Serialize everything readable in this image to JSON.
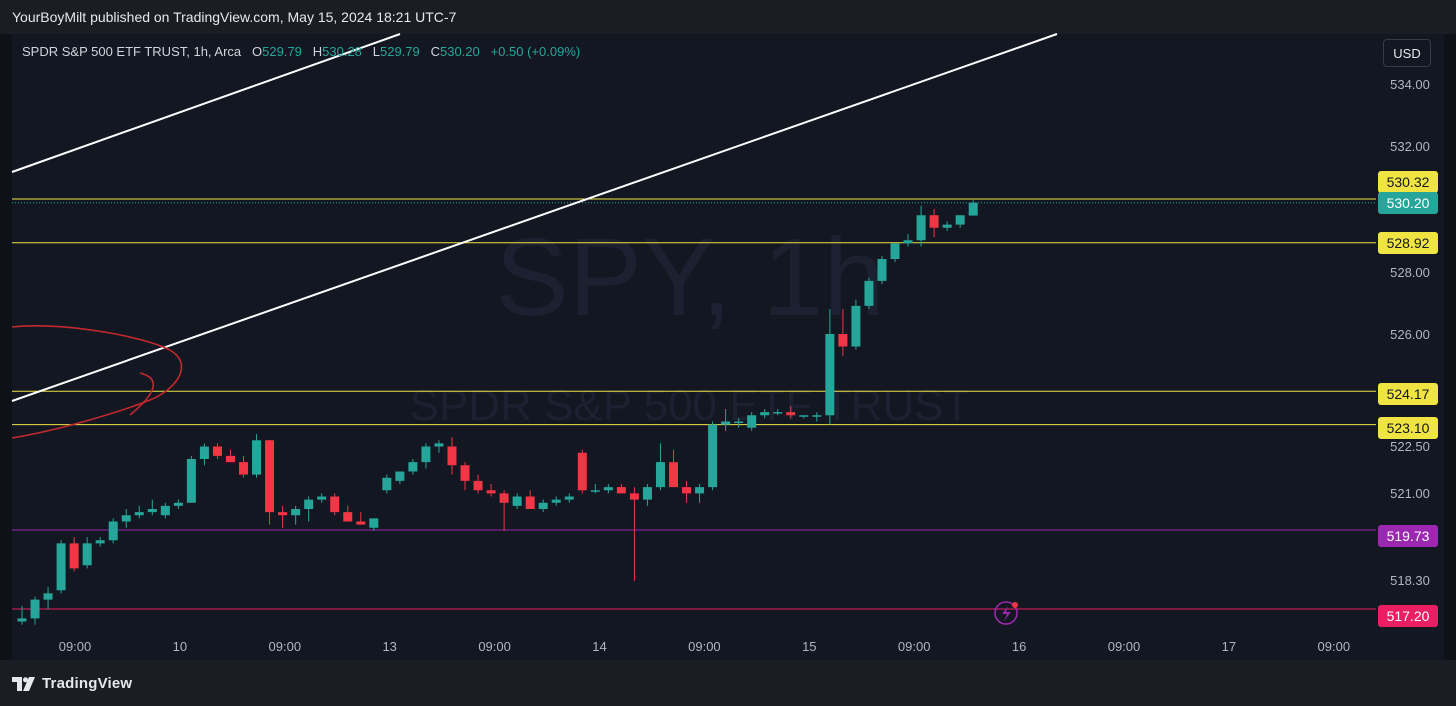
{
  "header": {
    "publisher_line": "YourBoyMilt published on TradingView.com, May 15, 2024 18:21 UTC-7"
  },
  "legend": {
    "symbol": "SPDR S&P 500 ETF TRUST, 1h, Arca",
    "open_label": "O",
    "open": "529.79",
    "high_label": "H",
    "high": "530.28",
    "low_label": "L",
    "low": "529.79",
    "close_label": "C",
    "close": "530.20",
    "change": "+0.50 (+0.09%)"
  },
  "watermark": {
    "symbol": "SPY, 1h",
    "name": "SPDR S&P 500 ETF TRUST"
  },
  "currency": "USD",
  "footer": {
    "brand": "TradingView"
  },
  "colors": {
    "up": "#26a69a",
    "down": "#f23645",
    "hline": "#f0e442",
    "purple": "#9c27b0",
    "pink": "#e91e63"
  },
  "chart_data": {
    "type": "candlestick",
    "y_ticks": [
      "534.00",
      "532.00",
      "528.00",
      "526.00",
      "522.50",
      "521.00",
      "518.30"
    ],
    "x_ticks": [
      "09:00",
      "10",
      "09:00",
      "13",
      "09:00",
      "14",
      "09:00",
      "15",
      "09:00",
      "16",
      "09:00",
      "17",
      "09:00"
    ],
    "ylim": [
      516.7,
      535.6
    ],
    "price_labels": [
      {
        "value": "530.32",
        "color": "#f0e442"
      },
      {
        "value": "530.20",
        "color": "#26a69a"
      },
      {
        "value": "528.92",
        "color": "#f0e442"
      },
      {
        "value": "524.17",
        "color": "#f0e442"
      },
      {
        "value": "523.10",
        "color": "#f0e442"
      },
      {
        "value": "519.73",
        "color": "#9c27b0"
      },
      {
        "value": "517.20",
        "color": "#e91e63"
      }
    ],
    "horizontal_lines": [
      530.32,
      528.92,
      524.17,
      523.1,
      519.73,
      517.2
    ],
    "candles": [
      {
        "o": 516.8,
        "h": 517.3,
        "l": 516.7,
        "c": 516.9
      },
      {
        "o": 516.9,
        "h": 517.6,
        "l": 516.7,
        "c": 517.5
      },
      {
        "o": 517.5,
        "h": 517.9,
        "l": 517.2,
        "c": 517.7
      },
      {
        "o": 517.8,
        "h": 519.4,
        "l": 517.7,
        "c": 519.3
      },
      {
        "o": 519.3,
        "h": 519.5,
        "l": 518.4,
        "c": 518.5
      },
      {
        "o": 518.6,
        "h": 519.5,
        "l": 518.5,
        "c": 519.3
      },
      {
        "o": 519.3,
        "h": 519.5,
        "l": 519.2,
        "c": 519.4
      },
      {
        "o": 519.4,
        "h": 520.1,
        "l": 519.3,
        "c": 520.0
      },
      {
        "o": 520.0,
        "h": 520.4,
        "l": 519.8,
        "c": 520.2
      },
      {
        "o": 520.2,
        "h": 520.5,
        "l": 520.1,
        "c": 520.3
      },
      {
        "o": 520.3,
        "h": 520.7,
        "l": 520.2,
        "c": 520.4
      },
      {
        "o": 520.2,
        "h": 520.6,
        "l": 520.1,
        "c": 520.5
      },
      {
        "o": 520.5,
        "h": 520.7,
        "l": 520.4,
        "c": 520.6
      },
      {
        "o": 520.6,
        "h": 522.1,
        "l": 520.6,
        "c": 522.0
      },
      {
        "o": 522.0,
        "h": 522.5,
        "l": 521.8,
        "c": 522.4
      },
      {
        "o": 522.4,
        "h": 522.5,
        "l": 522.0,
        "c": 522.1
      },
      {
        "o": 522.1,
        "h": 522.3,
        "l": 521.9,
        "c": 521.9
      },
      {
        "o": 521.9,
        "h": 522.1,
        "l": 521.4,
        "c": 521.5
      },
      {
        "o": 521.5,
        "h": 522.8,
        "l": 521.4,
        "c": 522.6
      },
      {
        "o": 522.6,
        "h": 522.6,
        "l": 519.9,
        "c": 520.3
      },
      {
        "o": 520.3,
        "h": 520.5,
        "l": 519.8,
        "c": 520.2
      },
      {
        "o": 520.2,
        "h": 520.5,
        "l": 519.9,
        "c": 520.4
      },
      {
        "o": 520.4,
        "h": 520.8,
        "l": 520.0,
        "c": 520.7
      },
      {
        "o": 520.7,
        "h": 520.9,
        "l": 520.6,
        "c": 520.8
      },
      {
        "o": 520.8,
        "h": 520.9,
        "l": 520.2,
        "c": 520.3
      },
      {
        "o": 520.3,
        "h": 520.5,
        "l": 520.0,
        "c": 520.0
      },
      {
        "o": 520.0,
        "h": 520.3,
        "l": 519.9,
        "c": 519.9
      },
      {
        "o": 519.8,
        "h": 520.1,
        "l": 519.7,
        "c": 520.1
      },
      {
        "o": 521.0,
        "h": 521.5,
        "l": 520.9,
        "c": 521.4
      },
      {
        "o": 521.3,
        "h": 521.6,
        "l": 521.2,
        "c": 521.6
      },
      {
        "o": 521.6,
        "h": 522.0,
        "l": 521.5,
        "c": 521.9
      },
      {
        "o": 521.9,
        "h": 522.5,
        "l": 521.7,
        "c": 522.4
      },
      {
        "o": 522.4,
        "h": 522.6,
        "l": 522.2,
        "c": 522.5
      },
      {
        "o": 522.4,
        "h": 522.7,
        "l": 521.5,
        "c": 521.8
      },
      {
        "o": 521.8,
        "h": 521.9,
        "l": 521.0,
        "c": 521.3
      },
      {
        "o": 521.3,
        "h": 521.5,
        "l": 520.9,
        "c": 521.0
      },
      {
        "o": 521.0,
        "h": 521.2,
        "l": 520.8,
        "c": 520.9
      },
      {
        "o": 520.9,
        "h": 521.0,
        "l": 519.7,
        "c": 520.6
      },
      {
        "o": 520.5,
        "h": 520.9,
        "l": 520.4,
        "c": 520.8
      },
      {
        "o": 520.8,
        "h": 521.0,
        "l": 520.4,
        "c": 520.4
      },
      {
        "o": 520.4,
        "h": 520.7,
        "l": 520.3,
        "c": 520.6
      },
      {
        "o": 520.6,
        "h": 520.8,
        "l": 520.5,
        "c": 520.7
      },
      {
        "o": 520.7,
        "h": 520.9,
        "l": 520.6,
        "c": 520.8
      },
      {
        "o": 522.2,
        "h": 522.3,
        "l": 520.9,
        "c": 521.0
      },
      {
        "o": 521.0,
        "h": 521.2,
        "l": 520.9,
        "c": 521.0
      },
      {
        "o": 521.0,
        "h": 521.2,
        "l": 520.9,
        "c": 521.1
      },
      {
        "o": 521.1,
        "h": 521.2,
        "l": 520.9,
        "c": 520.9
      },
      {
        "o": 520.9,
        "h": 521.1,
        "l": 518.1,
        "c": 520.7
      },
      {
        "o": 520.7,
        "h": 521.2,
        "l": 520.5,
        "c": 521.1
      },
      {
        "o": 521.1,
        "h": 522.5,
        "l": 521.0,
        "c": 521.9
      },
      {
        "o": 521.9,
        "h": 522.3,
        "l": 521.1,
        "c": 521.1
      },
      {
        "o": 521.1,
        "h": 521.3,
        "l": 520.6,
        "c": 520.9
      },
      {
        "o": 520.9,
        "h": 521.2,
        "l": 520.6,
        "c": 521.1
      },
      {
        "o": 521.1,
        "h": 523.2,
        "l": 521.0,
        "c": 523.1
      },
      {
        "o": 523.1,
        "h": 523.6,
        "l": 522.9,
        "c": 523.2
      },
      {
        "o": 523.2,
        "h": 523.3,
        "l": 523.0,
        "c": 523.2
      },
      {
        "o": 523.0,
        "h": 523.5,
        "l": 522.9,
        "c": 523.4
      },
      {
        "o": 523.4,
        "h": 523.6,
        "l": 523.3,
        "c": 523.5
      },
      {
        "o": 523.5,
        "h": 523.6,
        "l": 523.4,
        "c": 523.5
      },
      {
        "o": 523.5,
        "h": 523.7,
        "l": 523.3,
        "c": 523.4
      },
      {
        "o": 523.4,
        "h": 523.4,
        "l": 523.3,
        "c": 523.4
      },
      {
        "o": 523.4,
        "h": 523.5,
        "l": 523.2,
        "c": 523.4
      },
      {
        "o": 523.4,
        "h": 526.8,
        "l": 523.1,
        "c": 526.0
      },
      {
        "o": 526.0,
        "h": 526.8,
        "l": 525.3,
        "c": 525.6
      },
      {
        "o": 525.6,
        "h": 527.1,
        "l": 525.5,
        "c": 526.9
      },
      {
        "o": 526.9,
        "h": 527.8,
        "l": 526.8,
        "c": 527.7
      },
      {
        "o": 527.7,
        "h": 528.5,
        "l": 527.6,
        "c": 528.4
      },
      {
        "o": 528.4,
        "h": 528.9,
        "l": 528.3,
        "c": 528.9
      },
      {
        "o": 528.9,
        "h": 529.2,
        "l": 528.8,
        "c": 529.0
      },
      {
        "o": 529.0,
        "h": 530.1,
        "l": 528.8,
        "c": 529.8
      },
      {
        "o": 529.8,
        "h": 530.0,
        "l": 529.1,
        "c": 529.4
      },
      {
        "o": 529.4,
        "h": 529.6,
        "l": 529.3,
        "c": 529.5
      },
      {
        "o": 529.5,
        "h": 529.8,
        "l": 529.4,
        "c": 529.8
      },
      {
        "o": 529.79,
        "h": 530.28,
        "l": 529.79,
        "c": 530.2
      }
    ]
  }
}
